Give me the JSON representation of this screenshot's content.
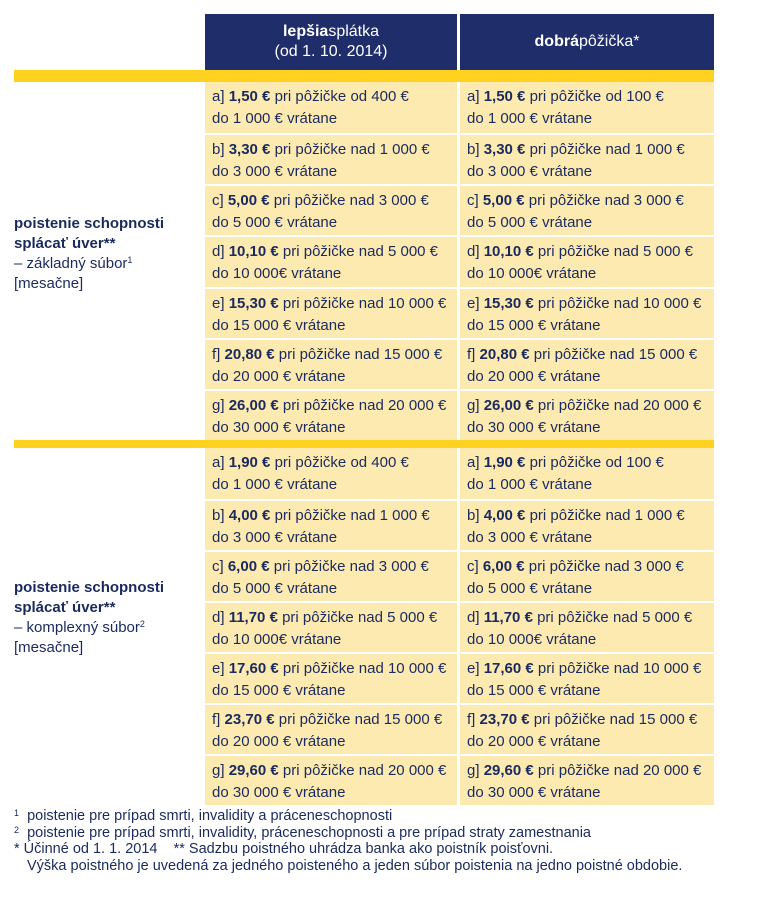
{
  "header": {
    "col1_bold": "lepšia",
    "col1_rest": "splátka",
    "col1_sub": "(od 1. 10. 2014)",
    "col2_bold": "dobrá",
    "col2_rest": "pôžička*"
  },
  "section1": {
    "title_line1": "poistenie schopnosti",
    "title_line2": "splácať úver**",
    "subtitle": "– základný súbor",
    "subtitle_sup": "1",
    "period": "[mesačne]",
    "col1": [
      {
        "prefix": "a]",
        "amount": "1,50 €",
        "line1": "pri pôžičke od 400 €",
        "line2": "do 1 000 € vrátane"
      },
      {
        "prefix": "b]",
        "amount": "3,30 €",
        "line1": "pri pôžičke nad 1 000 €",
        "line2": "do 3 000 € vrátane"
      },
      {
        "prefix": "c]",
        "amount": "5,00 €",
        "line1": "pri pôžičke nad 3 000 €",
        "line2": "do 5 000 € vrátane"
      },
      {
        "prefix": "d]",
        "amount": "10,10 €",
        "line1": "pri pôžičke nad 5 000 €",
        "line2": "do 10 000€ vrátane"
      },
      {
        "prefix": "e]",
        "amount": "15,30 €",
        "line1": "pri pôžičke nad 10 000 €",
        "line2": "do 15 000 € vrátane"
      },
      {
        "prefix": "f]",
        "amount": "20,80 €",
        "line1": "pri pôžičke nad 15 000 €",
        "line2": "do 20 000 € vrátane"
      },
      {
        "prefix": "g]",
        "amount": "26,00 €",
        "line1": "pri pôžičke nad 20 000 €",
        "line2": "do 30 000 € vrátane"
      }
    ],
    "col2": [
      {
        "prefix": "a]",
        "amount": "1,50 €",
        "line1": "pri pôžičke od 100 €",
        "line2": "do 1 000 € vrátane"
      },
      {
        "prefix": "b]",
        "amount": "3,30 €",
        "line1": "pri pôžičke nad 1 000 €",
        "line2": "do 3 000 € vrátane"
      },
      {
        "prefix": "c]",
        "amount": "5,00 €",
        "line1": "pri pôžičke nad 3 000 €",
        "line2": "do 5 000 € vrátane"
      },
      {
        "prefix": "d]",
        "amount": "10,10 €",
        "line1": "pri pôžičke nad 5 000 €",
        "line2": "do 10 000€ vrátane"
      },
      {
        "prefix": "e]",
        "amount": "15,30 €",
        "line1": "pri pôžičke nad 10 000 €",
        "line2": "do 15 000 € vrátane"
      },
      {
        "prefix": "f]",
        "amount": "20,80 €",
        "line1": "pri pôžičke nad 15 000 €",
        "line2": "do 20 000 € vrátane"
      },
      {
        "prefix": "g]",
        "amount": "26,00 €",
        "line1": "pri pôžičke nad 20 000 €",
        "line2": "do 30 000 € vrátane"
      }
    ]
  },
  "section2": {
    "title_line1": "poistenie schopnosti",
    "title_line2": "splácať úver**",
    "subtitle": "– komplexný súbor",
    "subtitle_sup": "2",
    "period": "[mesačne]",
    "col1": [
      {
        "prefix": "a]",
        "amount": "1,90 €",
        "line1": "pri pôžičke od 400 €",
        "line2": "do 1 000 € vrátane"
      },
      {
        "prefix": "b]",
        "amount": "4,00 €",
        "line1": "pri pôžičke nad 1 000 €",
        "line2": "do 3 000 € vrátane"
      },
      {
        "prefix": "c]",
        "amount": "6,00 €",
        "line1": "pri pôžičke nad 3 000 €",
        "line2": "do 5 000 € vrátane"
      },
      {
        "prefix": "d]",
        "amount": "11,70 €",
        "line1": "pri pôžičke nad 5 000 €",
        "line2": "do 10 000€ vrátane"
      },
      {
        "prefix": "e]",
        "amount": "17,60 €",
        "line1": "pri pôžičke nad 10 000 €",
        "line2": "do 15 000 € vrátane"
      },
      {
        "prefix": "f]",
        "amount": "23,70 €",
        "line1": "pri pôžičke nad 15 000 €",
        "line2": "do 20 000 € vrátane"
      },
      {
        "prefix": "g]",
        "amount": "29,60 €",
        "line1": "pri pôžičke nad 20 000 €",
        "line2": "do 30 000 € vrátane"
      }
    ],
    "col2": [
      {
        "prefix": "a]",
        "amount": "1,90 €",
        "line1": "pri pôžičke od 100 €",
        "line2": "do 1 000 € vrátane"
      },
      {
        "prefix": "b]",
        "amount": "4,00 €",
        "line1": "pri pôžičke nad 1 000 €",
        "line2": "do 3 000 € vrátane"
      },
      {
        "prefix": "c]",
        "amount": "6,00 €",
        "line1": "pri pôžičke nad 3 000 €",
        "line2": "do 5 000 € vrátane"
      },
      {
        "prefix": "d]",
        "amount": "11,70 €",
        "line1": "pri pôžičke nad 5 000 €",
        "line2": "do 10 000€ vrátane"
      },
      {
        "prefix": "e]",
        "amount": "17,60 €",
        "line1": "pri pôžičke nad 10 000 €",
        "line2": "do 15 000 € vrátane"
      },
      {
        "prefix": "f]",
        "amount": "23,70 €",
        "line1": "pri pôžičke nad 15 000 €",
        "line2": "do 20 000 € vrátane"
      },
      {
        "prefix": "g]",
        "amount": "29,60 €",
        "line1": "pri pôžičke nad 20 000 €",
        "line2": "do 30 000 € vrátane"
      }
    ]
  },
  "footnotes": {
    "n1_mark": "1",
    "n1": "poistenie pre prípad smrti, invalidity a práceneschopnosti",
    "n2_mark": "2",
    "n2": "poistenie pre prípad smrti, invalidity, práceneschopnosti a pre prípad straty zamestnania",
    "n3": "* Účinné od 1. 1. 2014    ** Sadzbu poistného uhrádza banka ako poistník poisťovni.",
    "n4": "Výška poistného je uvedená za jedného poisteného a jeden súbor poistenia na jedno poistné obdobie."
  },
  "colors": {
    "header_bg": "#1f2d6b",
    "band": "#ffd21f",
    "cell_bg": "#fdeab0",
    "text": "#1a2a5e"
  }
}
